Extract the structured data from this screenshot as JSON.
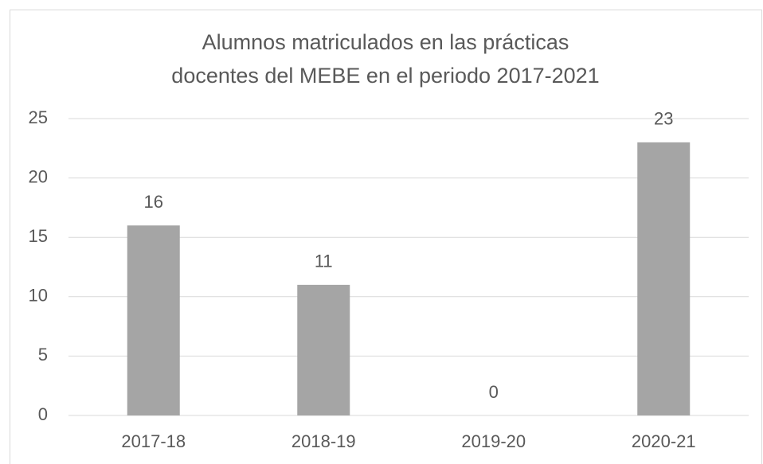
{
  "chart_data": {
    "type": "bar",
    "title": [
      "Alumnos matriculados en las prácticas",
      "docentes del MEBE en el periodo 2017-2021"
    ],
    "categories": [
      "2017-18",
      "2018-19",
      "2019-20",
      "2020-21"
    ],
    "values": [
      16,
      11,
      0,
      23
    ],
    "color": "#a5a5a5",
    "ylim": [
      0,
      25
    ],
    "yticks": [
      0,
      5,
      10,
      15,
      20,
      25
    ],
    "grid": true,
    "data_labels": true
  }
}
